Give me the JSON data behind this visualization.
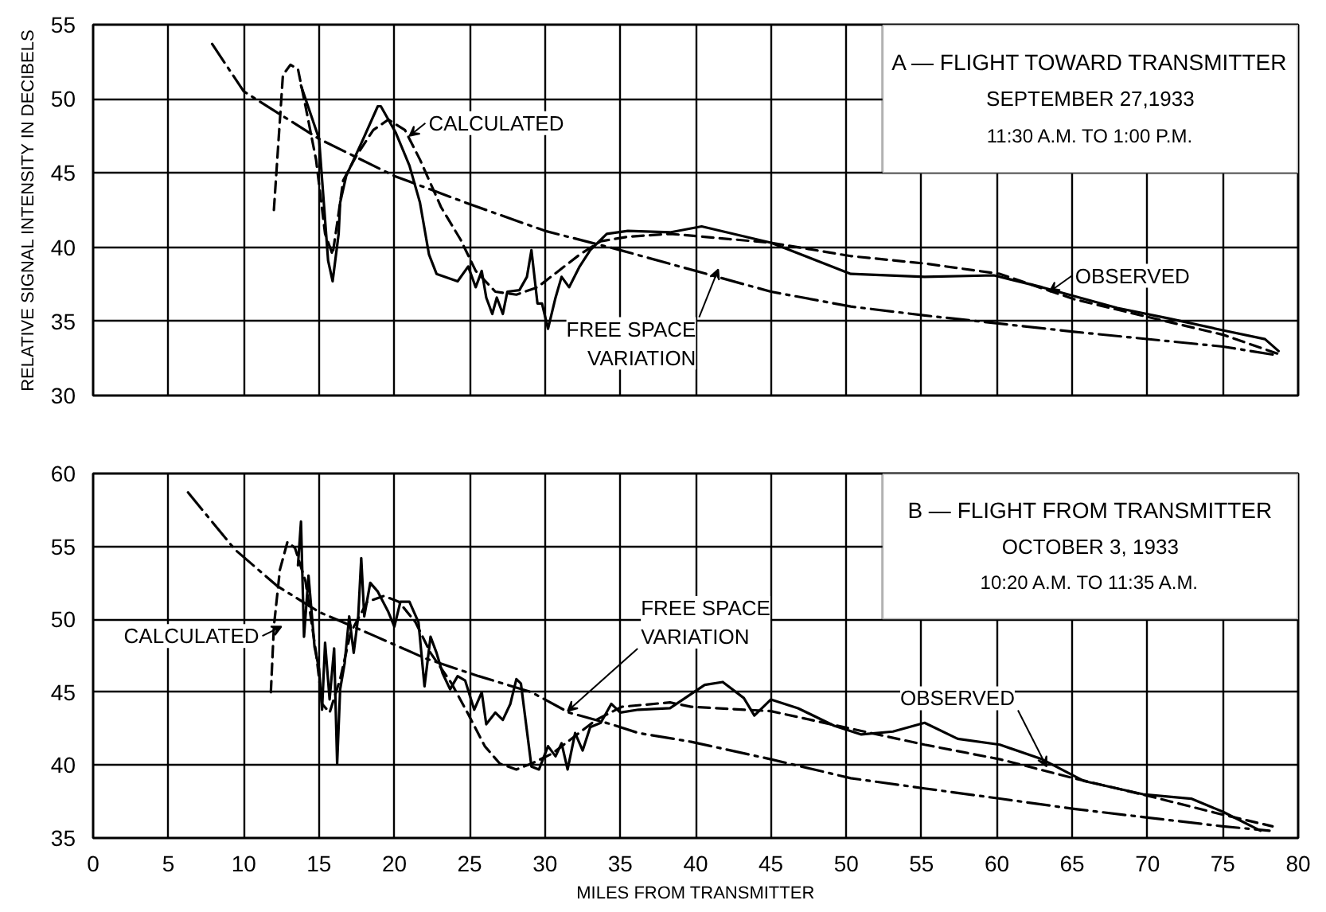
{
  "chart_data": [
    {
      "type": "line",
      "title": "A — FLIGHT TOWARD TRANSMITTER",
      "subtitle": "SEPTEMBER 27,1933",
      "ylabel": "RELATIVE SIGNAL INTENSITY IN DECIBELS",
      "xlim": [
        0,
        80
      ],
      "ylim": [
        30,
        55
      ],
      "xticks": [
        0,
        5,
        10,
        15,
        20,
        25,
        30,
        35,
        40,
        45,
        50,
        55,
        60,
        65,
        70,
        75,
        80
      ],
      "yticks": [
        30,
        35,
        40,
        45,
        50,
        55
      ],
      "tick_labels": "y",
      "grid": true,
      "annotations": [
        "11:30 A.M. TO 1:00 P.M.",
        {
          "text": "CALCULATED",
          "x": 21,
          "y": 47.5
        },
        {
          "text": "OBSERVED",
          "x": 63.5,
          "y": 37
        },
        {
          "text": "FREE SPACE VARIATION",
          "x": 41.5,
          "y": 38.5
        }
      ],
      "series": [
        {
          "color": "#000000",
          "line_style": "solid",
          "x": [
            13.8,
            15,
            15.6,
            15.9,
            16.3,
            16.4,
            16.8,
            17.8,
            18.9,
            19.1,
            20.1,
            21,
            21.7,
            22.3,
            22.8,
            24.2,
            24.9,
            25.4,
            25.8,
            26.1,
            26.5,
            26.8,
            27.2,
            27.5,
            28.3,
            28.8,
            29.1,
            29.5,
            29.8,
            30.2,
            30.7,
            31.1,
            31.6,
            32.3,
            33,
            34.1,
            35.5,
            38.3,
            40.4,
            45,
            50.3,
            55.2,
            59.8,
            63,
            68,
            71.4,
            75,
            77.8,
            78.7
          ],
          "values": [
            50.9,
            47.3,
            39.1,
            37.7,
            40.9,
            43,
            44.8,
            47,
            49.5,
            49.5,
            47.7,
            45.5,
            43,
            39.5,
            38.2,
            37.7,
            38.7,
            37.3,
            38.4,
            36.6,
            35.5,
            36.6,
            35.5,
            37,
            37.1,
            38,
            39.8,
            36.2,
            36.2,
            34.5,
            36.6,
            38,
            37.3,
            38.7,
            39.8,
            40.9,
            41.1,
            41,
            41.4,
            40.3,
            38.2,
            38,
            38.1,
            37.3,
            35.9,
            35.2,
            34.4,
            33.8,
            33
          ]
        },
        {
          "color": "#000000",
          "line_style": "dashed",
          "x": [
            12,
            12.6,
            13.1,
            13.6,
            14.1,
            14.8,
            15.4,
            15.9,
            16.3,
            16.6,
            17.5,
            18.6,
            19.6,
            20.7,
            21.7,
            23.1,
            24.4,
            25.4,
            26.7,
            28.1,
            29.5,
            30.9,
            32.3,
            33.7,
            35.5,
            38.3,
            45,
            50.3,
            55.2,
            60.2,
            65.1,
            70,
            75,
            78.7
          ],
          "values": [
            42.5,
            51.6,
            52.3,
            52,
            49.5,
            45.9,
            40.9,
            39.5,
            42.3,
            44.5,
            46.2,
            47.9,
            48.6,
            47.9,
            45.9,
            42.7,
            40.5,
            38.4,
            37,
            36.8,
            37.3,
            38.4,
            39.5,
            40.4,
            40.7,
            40.9,
            40.3,
            39.4,
            38.9,
            38.2,
            36.5,
            35.3,
            34.1,
            32.8
          ]
        },
        {
          "color": "#000000",
          "line_style": "dashdot",
          "x": [
            7.9,
            10,
            15,
            20,
            25,
            30,
            35,
            45,
            50.3,
            55.2,
            65.1,
            75,
            78.7
          ],
          "values": [
            53.7,
            50.5,
            47.3,
            44.8,
            42.9,
            41.1,
            39.8,
            37,
            36,
            35.4,
            34.3,
            33.3,
            32.7
          ]
        }
      ]
    },
    {
      "type": "line",
      "title": "B — FLIGHT FROM TRANSMITTER",
      "subtitle": "OCTOBER 3, 1933",
      "xlabel": "MILES FROM TRANSMITTER",
      "xlim": [
        0,
        80
      ],
      "ylim": [
        35,
        60
      ],
      "xticks": [
        0,
        5,
        10,
        15,
        20,
        25,
        30,
        35,
        40,
        45,
        50,
        55,
        60,
        65,
        70,
        75,
        80
      ],
      "yticks": [
        35,
        40,
        45,
        50,
        55,
        60
      ],
      "grid": true,
      "annotations": [
        "10:20 A.M. TO 11:35 A.M.",
        {
          "text": "CALCULATED",
          "x": 12.5,
          "y": 49.5
        },
        {
          "text": "FREE SPACE VARIATION",
          "x": 31.5,
          "y": 43.7
        },
        {
          "text": "OBSERVED",
          "x": 63.3,
          "y": 39.9
        }
      ],
      "series": [
        {
          "color": "#000000",
          "line_style": "solid",
          "x": [
            13.6,
            13.8,
            14,
            14.3,
            14.7,
            15,
            15.2,
            15.4,
            15.7,
            16,
            16.2,
            16.4,
            16.7,
            17,
            17.3,
            17.6,
            17.8,
            18,
            18.4,
            18.9,
            19.6,
            20,
            20.4,
            21,
            21.6,
            22,
            22.4,
            22.8,
            23.2,
            23.7,
            24.2,
            24.7,
            25.3,
            25.8,
            26.1,
            26.7,
            27.2,
            27.7,
            28.1,
            28.4,
            29.1,
            29.6,
            30.2,
            30.7,
            31.1,
            31.5,
            32,
            32.5,
            33,
            33.7,
            34.4,
            35,
            36.2,
            38.3,
            40.6,
            41.8,
            43.2,
            43.9,
            45,
            46.8,
            49.2,
            51,
            53.1,
            55.2,
            57.4,
            60.2,
            63,
            65.8,
            69.7,
            72.9,
            75,
            77.5
          ],
          "values": [
            53.7,
            56.7,
            48.8,
            53,
            48.1,
            46.6,
            43.8,
            48.4,
            44.5,
            48,
            40.1,
            45.2,
            47,
            50.2,
            47.7,
            50.2,
            54.2,
            50.2,
            52.5,
            51.9,
            50.5,
            49.5,
            51.2,
            51.2,
            49.8,
            45.4,
            48.8,
            47.7,
            46.3,
            45.2,
            46.1,
            45.8,
            43.8,
            45,
            42.8,
            43.6,
            43.1,
            44.2,
            45.9,
            45.6,
            39.9,
            39.7,
            41.3,
            40.6,
            41.5,
            39.7,
            42.2,
            41,
            42.6,
            42.9,
            44.2,
            43.6,
            43.8,
            43.9,
            45.5,
            45.7,
            44.6,
            43.4,
            44.5,
            43.9,
            42.7,
            42.1,
            42.3,
            42.9,
            41.8,
            41.4,
            40.4,
            38.9,
            38,
            37.7,
            36.8,
            35.5
          ]
        },
        {
          "color": "#000000",
          "line_style": "dashed",
          "x": [
            11.8,
            12,
            12.4,
            12.9,
            13.4,
            14.1,
            14.8,
            15.2,
            15.7,
            16.4,
            17.1,
            18.2,
            19.3,
            20.3,
            21.4,
            22.4,
            23.8,
            24.9,
            26,
            27,
            28.1,
            29.1,
            30.5,
            32,
            33.4,
            35.1,
            38.3,
            39.7,
            45,
            50.3,
            55.2,
            60.2,
            65.1,
            70,
            75,
            78.3
          ],
          "values": [
            45,
            49.5,
            53.4,
            55.3,
            54.9,
            52.6,
            47.7,
            44.2,
            43.6,
            45.9,
            49.1,
            51.2,
            51.6,
            51.2,
            49.8,
            47.7,
            45.6,
            43.5,
            41.3,
            40.1,
            39.7,
            40.1,
            40.8,
            42,
            43.1,
            44,
            44.3,
            44,
            43.7,
            42.5,
            41.4,
            40.4,
            39.1,
            37.9,
            36.6,
            35.8
          ]
        },
        {
          "color": "#000000",
          "line_style": "dashdot",
          "x": [
            6.3,
            9.4,
            12.2,
            15,
            18.6,
            22.1,
            25.6,
            29.1,
            31.6,
            34.4,
            36.2,
            39.7,
            45,
            50.3,
            55.2,
            60.2,
            65.1,
            70,
            75,
            78.1
          ],
          "values": [
            58.7,
            54.8,
            52.3,
            50.5,
            48.9,
            47.3,
            46.1,
            45,
            43.6,
            42.8,
            42.2,
            41.6,
            40.4,
            39.1,
            38.4,
            37.7,
            37,
            36.4,
            35.8,
            35.5
          ]
        }
      ]
    }
  ]
}
